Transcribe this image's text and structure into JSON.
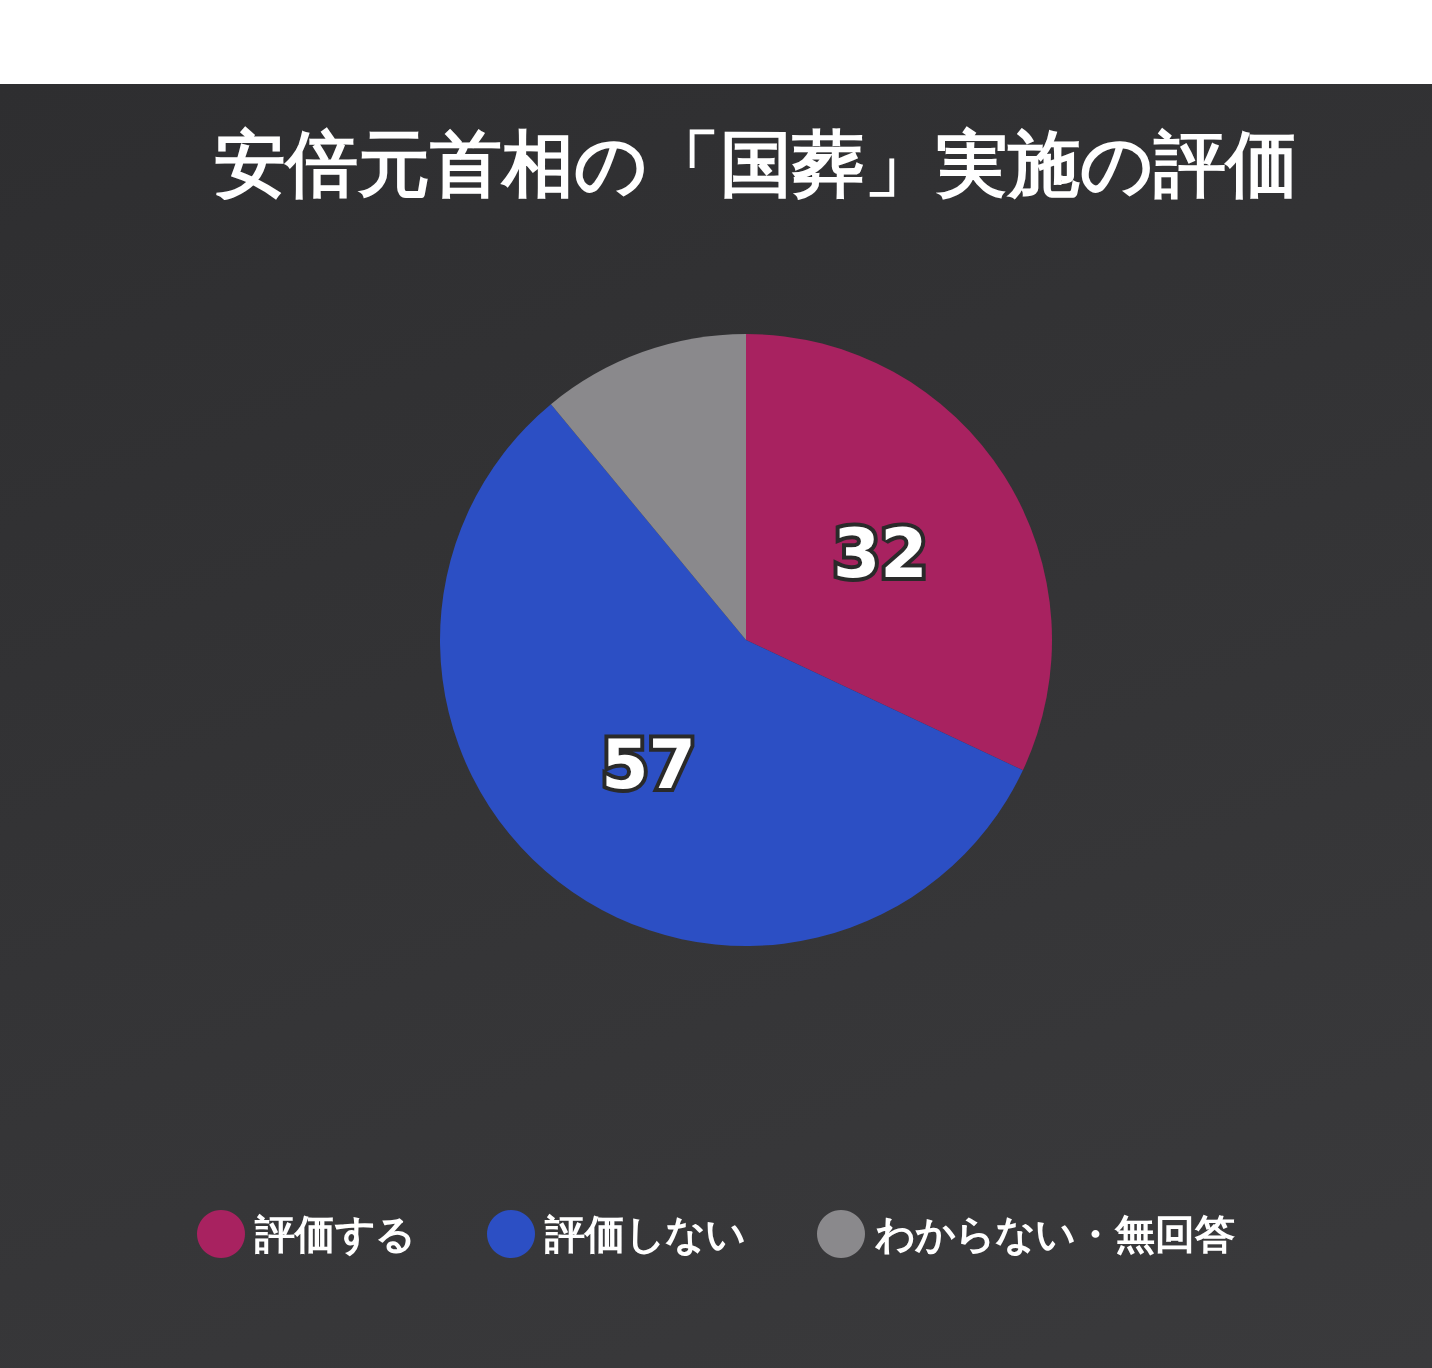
{
  "chart_data": {
    "type": "pie",
    "title": "安倍元首相の「国葬」実施の評価",
    "categories": [
      "評価する",
      "評価しない",
      "わからない・無回答"
    ],
    "values": [
      32,
      57,
      11
    ],
    "value_labels": [
      "32",
      "57",
      null
    ],
    "colors": [
      "#a82260",
      "#2c4fc4",
      "#8a898c"
    ],
    "legend": "bottom"
  }
}
